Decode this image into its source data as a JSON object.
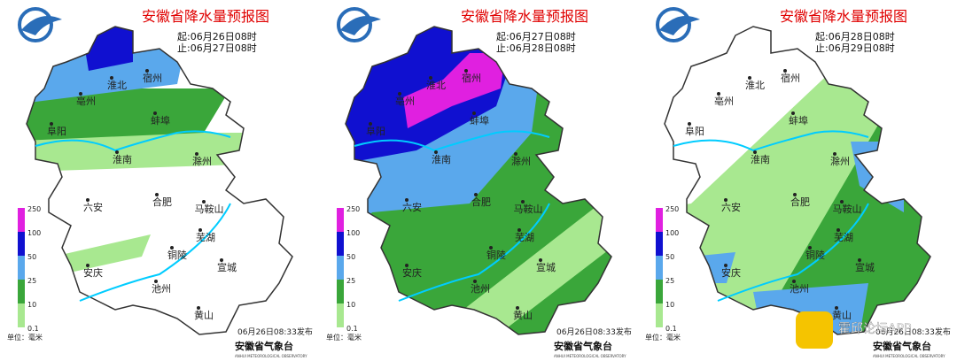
{
  "panels": [
    {
      "title": "安徽省降水量预报图",
      "start": "起:06月26日08时",
      "end": "止:06月27日08时",
      "publish": "06月26日08:33发布"
    },
    {
      "title": "安徽省降水量预报图",
      "start": "起:06月27日08时",
      "end": "止:06月28日08时",
      "publish": "06月26日08:33发布"
    },
    {
      "title": "安徽省降水量预报图",
      "start": "起:06月28日08时",
      "end": "止:06月29日08时",
      "publish": "06月26日08:33发布"
    }
  ],
  "cities": [
    "淮北",
    "宿州",
    "亳州",
    "蚌埠",
    "阜阳",
    "淮南",
    "滁州",
    "六安",
    "合肥",
    "马鞍山",
    "芜湖",
    "铜陵",
    "安庆",
    "池州",
    "宣城",
    "黄山"
  ],
  "legend_ticks": [
    "250",
    "100",
    "50",
    "25",
    "10",
    "0.1"
  ],
  "unit": "单位：毫米",
  "agency": "安徽省气象台",
  "agency_en": "ANHUI METEOROLOGICAL OBSERVATORY",
  "watermark": "霍邱论坛APP"
}
